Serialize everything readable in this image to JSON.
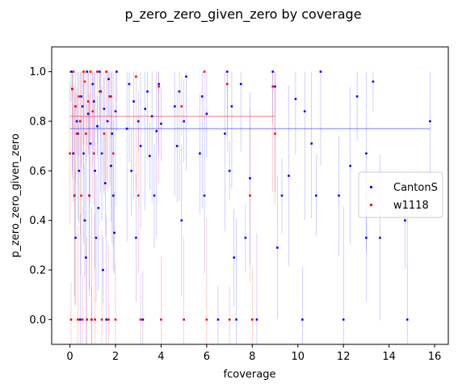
{
  "chart_data": {
    "type": "scatter",
    "title": "p_zero_zero_given_zero by coverage",
    "xlabel": "fcoverage",
    "ylabel": "p_zero_zero_given_zero",
    "xlim": [
      -0.8,
      16.6
    ],
    "ylim": [
      -0.1,
      1.1
    ],
    "xticks": [
      0,
      2,
      4,
      6,
      8,
      10,
      12,
      14,
      16
    ],
    "yticks": [
      0.0,
      0.2,
      0.4,
      0.6,
      0.8,
      1.0
    ],
    "grid": false,
    "legend": "center-right",
    "series": [
      {
        "name": "CantonS",
        "color": "#0000ff",
        "mean_line": {
          "x": [
            0,
            15.8
          ],
          "y": 0.77
        },
        "points": [
          [
            0.05,
            1.0
          ],
          [
            0.1,
            0.93
          ],
          [
            0.15,
            0.67
          ],
          [
            0.2,
            0.5
          ],
          [
            0.25,
            0.33
          ],
          [
            0.3,
            0.8
          ],
          [
            0.35,
            0.75
          ],
          [
            0.4,
            0.6
          ],
          [
            0.45,
            0.0
          ],
          [
            0.5,
            0.9
          ],
          [
            0.55,
            0.86
          ],
          [
            0.6,
            0.67
          ],
          [
            0.65,
            0.4
          ],
          [
            0.7,
            0.25
          ],
          [
            0.75,
            1.0
          ],
          [
            0.8,
            0.83
          ],
          [
            0.85,
            0.5
          ],
          [
            0.9,
            0.71
          ],
          [
            0.95,
            0.0
          ],
          [
            1.0,
            0.95
          ],
          [
            1.05,
            0.88
          ],
          [
            1.1,
            0.6
          ],
          [
            1.15,
            0.33
          ],
          [
            1.2,
            0.78
          ],
          [
            1.25,
            0.45
          ],
          [
            1.3,
            1.0
          ],
          [
            1.35,
            0.92
          ],
          [
            1.4,
            0.67
          ],
          [
            1.45,
            0.2
          ],
          [
            1.5,
            0.85
          ],
          [
            1.55,
            0.55
          ],
          [
            1.6,
            0.0
          ],
          [
            1.65,
            0.8
          ],
          [
            1.7,
            0.97
          ],
          [
            1.75,
            0.9
          ],
          [
            1.8,
            0.62
          ],
          [
            1.85,
            0.75
          ],
          [
            1.9,
            0.5
          ],
          [
            1.95,
            0.35
          ],
          [
            2.0,
            0.84
          ],
          [
            2.05,
            1.0
          ],
          [
            2.5,
            0.77
          ],
          [
            2.6,
            0.95
          ],
          [
            2.7,
            0.6
          ],
          [
            2.8,
            0.88
          ],
          [
            2.9,
            0.33
          ],
          [
            3.0,
            0.8
          ],
          [
            3.1,
            0.7
          ],
          [
            3.2,
            0.0
          ],
          [
            3.3,
            0.85
          ],
          [
            3.4,
            0.92
          ],
          [
            3.5,
            0.66
          ],
          [
            3.6,
            0.82
          ],
          [
            3.7,
            0.5
          ],
          [
            3.8,
            0.76
          ],
          [
            3.9,
            0.95
          ],
          [
            4.0,
            0.79
          ],
          [
            4.6,
            0.86
          ],
          [
            4.7,
            0.7
          ],
          [
            4.8,
            0.92
          ],
          [
            4.9,
            0.4
          ],
          [
            5.0,
            0.8
          ],
          [
            5.1,
            0.98
          ],
          [
            5.7,
            0.67
          ],
          [
            5.8,
            0.9
          ],
          [
            5.9,
            0.5
          ],
          [
            6.0,
            0.83
          ],
          [
            6.8,
            0.75
          ],
          [
            6.9,
            1.0
          ],
          [
            7.0,
            0.6
          ],
          [
            7.1,
            0.86
          ],
          [
            7.2,
            0.25
          ],
          [
            7.3,
            0.0
          ],
          [
            7.5,
            0.95
          ],
          [
            7.7,
            0.33
          ],
          [
            7.9,
            0.57
          ],
          [
            8.9,
            1.0
          ],
          [
            9.0,
            0.94
          ],
          [
            9.1,
            0.29
          ],
          [
            9.3,
            0.5
          ],
          [
            9.6,
            0.58
          ],
          [
            9.9,
            0.89
          ],
          [
            10.3,
            0.84
          ],
          [
            10.6,
            0.71
          ],
          [
            10.8,
            0.5
          ],
          [
            11.0,
            1.0
          ],
          [
            11.8,
            0.5
          ],
          [
            12.0,
            0.0
          ],
          [
            12.3,
            0.62
          ],
          [
            12.6,
            0.9
          ],
          [
            13.0,
            0.67
          ],
          [
            13.0,
            0.33
          ],
          [
            13.3,
            0.96
          ],
          [
            13.6,
            0.33
          ],
          [
            14.7,
            0.4
          ],
          [
            14.8,
            0.0
          ],
          [
            15.8,
            0.8
          ],
          [
            6.5,
            0.0
          ],
          [
            8.2,
            0.0
          ],
          [
            10.2,
            0.0
          ]
        ]
      },
      {
        "name": "w1118",
        "color": "#ff0000",
        "mean_line": {
          "x": [
            0,
            9.0
          ],
          "y": 0.82
        },
        "points": [
          [
            0.0,
            0.67
          ],
          [
            0.05,
            0.0
          ],
          [
            0.1,
            0.93
          ],
          [
            0.15,
            1.0
          ],
          [
            0.2,
            0.5
          ],
          [
            0.25,
            0.86
          ],
          [
            0.3,
            0.75
          ],
          [
            0.35,
            0.0
          ],
          [
            0.4,
            0.9
          ],
          [
            0.45,
            0.8
          ],
          [
            0.5,
            0.5
          ],
          [
            0.55,
            0.0
          ],
          [
            0.6,
            1.0
          ],
          [
            0.65,
            0.96
          ],
          [
            0.7,
            0.75
          ],
          [
            0.75,
            0.0
          ],
          [
            0.8,
            0.88
          ],
          [
            0.85,
            0.5
          ],
          [
            0.9,
            1.0
          ],
          [
            0.95,
            0.0
          ],
          [
            1.0,
            0.84
          ],
          [
            1.05,
            0.67
          ],
          [
            1.1,
            0.0
          ],
          [
            1.2,
            1.0
          ],
          [
            1.3,
            0.92
          ],
          [
            1.4,
            0.0
          ],
          [
            1.5,
            0.75
          ],
          [
            1.6,
            1.0
          ],
          [
            1.7,
            0.0
          ],
          [
            1.8,
            0.9
          ],
          [
            1.9,
            0.67
          ],
          [
            2.0,
            0.0
          ],
          [
            2.9,
            0.98
          ],
          [
            3.0,
            0.5
          ],
          [
            3.1,
            0.0
          ],
          [
            3.9,
            0.94
          ],
          [
            4.0,
            0.0
          ],
          [
            4.9,
            0.86
          ],
          [
            5.0,
            0.0
          ],
          [
            5.9,
            1.0
          ],
          [
            6.0,
            0.0
          ],
          [
            6.9,
            0.95
          ],
          [
            7.0,
            0.0
          ],
          [
            7.9,
            0.5
          ],
          [
            8.0,
            0.0
          ],
          [
            8.9,
            0.94
          ],
          [
            9.0,
            0.75
          ]
        ]
      }
    ]
  }
}
